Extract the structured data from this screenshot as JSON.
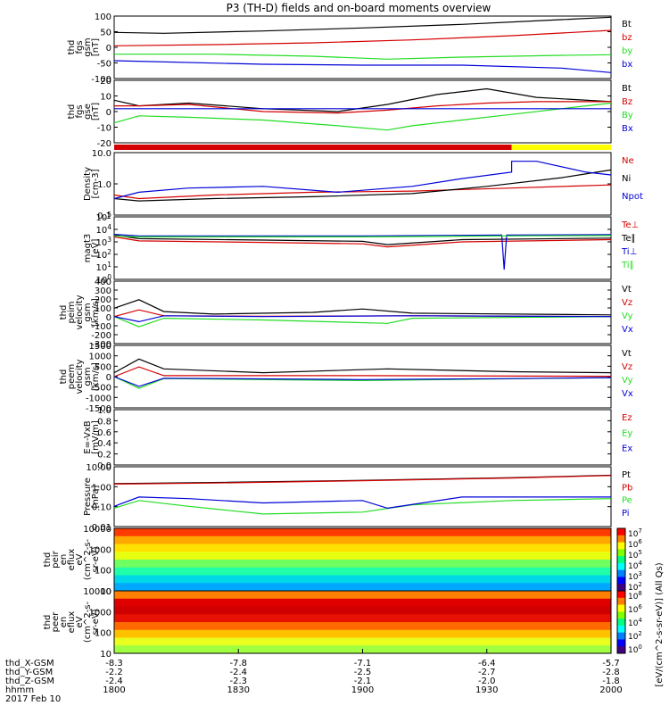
{
  "title": "P3 (TH-D) fields and on-board moments overview",
  "colors": {
    "black": "#000000",
    "red": "#d40000",
    "green": "#22dd22",
    "blue": "#0000d8",
    "yellow": "#ffff00"
  },
  "chart_data": [
    {
      "type": "line",
      "id": "fgs_gsm",
      "ylabel": [
        "thd",
        "fgs",
        "gsm",
        "[nT]"
      ],
      "yticks": [
        "100",
        "50",
        "0",
        "-50",
        "-100"
      ],
      "ylim": [
        -100,
        110
      ],
      "series": [
        {
          "name": "Bt",
          "color": "#000000",
          "x": [
            0,
            0.1,
            0.3,
            0.5,
            0.7,
            0.9,
            1.0
          ],
          "y": [
            55,
            52,
            60,
            70,
            82,
            98,
            106
          ]
        },
        {
          "name": "bz",
          "color": "#d40000",
          "x": [
            0,
            0.2,
            0.4,
            0.6,
            0.8,
            1.0
          ],
          "y": [
            10,
            14,
            20,
            30,
            44,
            62
          ]
        },
        {
          "name": "by",
          "color": "#22dd22",
          "x": [
            0,
            0.2,
            0.4,
            0.55,
            0.7,
            0.9,
            1.0
          ],
          "y": [
            -18,
            -18,
            -25,
            -35,
            -28,
            -22,
            -20
          ]
        },
        {
          "name": "bx",
          "color": "#0000d8",
          "x": [
            0,
            0.3,
            0.5,
            0.7,
            0.9,
            1.0
          ],
          "y": [
            -40,
            -52,
            -55,
            -55,
            -65,
            -80
          ]
        }
      ]
    },
    {
      "type": "line",
      "id": "fgs_gse",
      "ylabel": [
        "thd",
        "fgs",
        "gse",
        "[nT]"
      ],
      "yticks": [
        "20",
        "10",
        "0",
        "-10",
        "-20"
      ],
      "ylim": [
        -24,
        20
      ],
      "series": [
        {
          "name": "Bt",
          "color": "#000000",
          "x": [
            0,
            0.05,
            0.15,
            0.3,
            0.45,
            0.55,
            0.65,
            0.75,
            0.85,
            1.0
          ],
          "y": [
            6,
            2,
            4,
            0,
            -2,
            3,
            10,
            14,
            8,
            5
          ]
        },
        {
          "name": "Bz",
          "color": "#d40000",
          "x": [
            0,
            0.05,
            0.15,
            0.3,
            0.45,
            0.55,
            0.65,
            0.75,
            0.85,
            1.0
          ],
          "y": [
            2,
            2,
            3,
            -2,
            -3,
            -1,
            2,
            4,
            5,
            5
          ]
        },
        {
          "name": "By",
          "color": "#22dd22",
          "x": [
            0,
            0.05,
            0.15,
            0.3,
            0.45,
            0.55,
            0.6,
            0.7,
            0.8,
            0.9,
            1.0
          ],
          "y": [
            -10,
            -5,
            -6,
            -8,
            -12,
            -15,
            -12,
            -8,
            -4,
            0,
            4
          ]
        },
        {
          "name": "Bx",
          "color": "#0000d8",
          "x": [
            0,
            1.0
          ],
          "y": [
            0,
            0
          ]
        }
      ]
    },
    {
      "type": "line",
      "id": "density",
      "log": true,
      "ylabel": [
        "Density",
        "[cm-3]"
      ],
      "yticks": [
        "10.0",
        "1.0",
        "0.1"
      ],
      "ylim": [
        0.08,
        12
      ],
      "series": [
        {
          "name": "Ne",
          "color": "#d40000",
          "x": [
            0,
            0.05,
            0.2,
            0.4,
            0.6,
            0.8,
            1.0
          ],
          "y": [
            0.4,
            0.3,
            0.4,
            0.5,
            0.55,
            0.7,
            0.9
          ]
        },
        {
          "name": "Ni",
          "color": "#000000",
          "x": [
            0,
            0.05,
            0.2,
            0.4,
            0.6,
            0.75,
            0.9,
            1.0
          ],
          "y": [
            0.3,
            0.25,
            0.3,
            0.35,
            0.45,
            0.8,
            1.6,
            3.0
          ]
        },
        {
          "name": "Npot",
          "color": "#0000d8",
          "x": [
            0,
            0.05,
            0.15,
            0.3,
            0.45,
            0.6,
            0.7,
            0.8,
            0.8,
            0.85,
            0.95,
            1.0
          ],
          "y": [
            0.3,
            0.5,
            0.7,
            0.8,
            0.5,
            0.8,
            1.5,
            2.5,
            6.0,
            6.0,
            2.5,
            2.0
          ]
        }
      ]
    },
    {
      "type": "line",
      "id": "temperature",
      "log": true,
      "ylabel": [
        "magt3",
        "[eV]"
      ],
      "yticks": [
        "10^5",
        "10^4",
        "10^3",
        "10^2",
        "10^1",
        "10^0"
      ],
      "ylim": [
        1,
        100000
      ],
      "series": [
        {
          "name": "Te⊥",
          "color": "#d40000",
          "x": [
            0,
            0.05,
            0.3,
            0.5,
            0.55,
            0.7,
            1.0
          ],
          "y": [
            2500,
            1200,
            900,
            700,
            400,
            1000,
            1500
          ]
        },
        {
          "name": "Te∥",
          "color": "#000000",
          "x": [
            0,
            0.05,
            0.3,
            0.5,
            0.55,
            0.7,
            1.0
          ],
          "y": [
            3500,
            1800,
            1400,
            1100,
            600,
            1500,
            2000
          ]
        },
        {
          "name": "Ti⊥",
          "color": "#0000d8",
          "x": [
            0,
            0.05,
            0.5,
            0.78,
            0.785,
            0.79,
            1.0
          ],
          "y": [
            4000,
            3000,
            3000,
            3500,
            6,
            3500,
            3800
          ]
        },
        {
          "name": "Ti∥",
          "color": "#22dd22",
          "x": [
            0,
            0.05,
            0.5,
            0.8,
            1.0
          ],
          "y": [
            3000,
            2500,
            2500,
            3000,
            3200
          ]
        }
      ]
    },
    {
      "type": "line",
      "id": "peim_velocity",
      "ylabel": [
        "thd",
        "peim",
        "velocity",
        "gsm",
        "[km/s]"
      ],
      "yticks": [
        "400",
        "300",
        "200",
        "100",
        "0",
        "-100",
        "-200",
        "-300"
      ],
      "ylim": [
        -320,
        420
      ],
      "series": [
        {
          "name": "Vt",
          "color": "#000000",
          "x": [
            0,
            0.05,
            0.1,
            0.2,
            0.4,
            0.5,
            0.6,
            1.0
          ],
          "y": [
            100,
            200,
            60,
            30,
            50,
            90,
            40,
            20
          ]
        },
        {
          "name": "Vz",
          "color": "#d40000",
          "x": [
            0,
            0.05,
            0.1,
            0.3,
            0.6,
            1.0
          ],
          "y": [
            0,
            80,
            10,
            5,
            10,
            0
          ]
        },
        {
          "name": "Vy",
          "color": "#22dd22",
          "x": [
            0,
            0.05,
            0.1,
            0.3,
            0.55,
            0.6,
            1.0
          ],
          "y": [
            0,
            -120,
            -20,
            -40,
            -80,
            -20,
            0
          ]
        },
        {
          "name": "Vx",
          "color": "#0000d8",
          "x": [
            0,
            0.05,
            0.1,
            0.3,
            0.6,
            1.0
          ],
          "y": [
            0,
            -60,
            10,
            0,
            10,
            0
          ]
        }
      ]
    },
    {
      "type": "line",
      "id": "peem_velocity",
      "ylabel": [
        "thd",
        "peem",
        "velocity",
        "gsm",
        "[km/s]"
      ],
      "yticks": [
        "1500",
        "1000",
        "500",
        "0",
        "-500",
        "-1000",
        "-1500"
      ],
      "ylim": [
        -1600,
        1600
      ],
      "series": [
        {
          "name": "Vt",
          "color": "#000000",
          "x": [
            0,
            0.05,
            0.1,
            0.3,
            0.55,
            0.8,
            1.0
          ],
          "y": [
            200,
            900,
            400,
            200,
            400,
            250,
            200
          ]
        },
        {
          "name": "Vz",
          "color": "#d40000",
          "x": [
            0,
            0.05,
            0.1,
            0.5,
            1.0
          ],
          "y": [
            0,
            500,
            50,
            50,
            20
          ]
        },
        {
          "name": "Vy",
          "color": "#22dd22",
          "x": [
            0,
            0.05,
            0.1,
            0.5,
            1.0
          ],
          "y": [
            0,
            -600,
            -100,
            -200,
            -50
          ]
        },
        {
          "name": "Vx",
          "color": "#0000d8",
          "x": [
            0,
            0.05,
            0.1,
            0.5,
            0.8,
            1.0
          ],
          "y": [
            0,
            -500,
            -80,
            -150,
            -100,
            -50
          ]
        }
      ]
    },
    {
      "type": "line",
      "id": "efield",
      "ylabel": [
        "E=-VxB",
        "[mV/m]"
      ],
      "yticks": [
        "1.0",
        "0.8",
        "0.6",
        "0.4",
        "0.2",
        "0.0"
      ],
      "ylim": [
        0,
        1.05
      ],
      "series": [
        {
          "name": "Ez",
          "color": "#d40000",
          "x": [],
          "y": []
        },
        {
          "name": "Ey",
          "color": "#22dd22",
          "x": [],
          "y": []
        },
        {
          "name": "Ex",
          "color": "#0000d8",
          "x": [],
          "y": []
        }
      ]
    },
    {
      "type": "line",
      "id": "pressure",
      "log": true,
      "ylabel": [
        "Pressure",
        "[nPa]"
      ],
      "yticks": [
        "10.00",
        "1.00",
        "0.10",
        "0.01"
      ],
      "ylim": [
        0.009,
        11
      ],
      "series": [
        {
          "name": "Pt",
          "color": "#000000",
          "x": [
            0,
            0.2,
            0.5,
            0.8,
            1.0
          ],
          "y": [
            1.5,
            1.7,
            2.2,
            3.0,
            4.0
          ]
        },
        {
          "name": "Pb",
          "color": "#d40000",
          "x": [
            0,
            0.2,
            0.5,
            0.8,
            1.0
          ],
          "y": [
            1.4,
            1.6,
            2.1,
            2.9,
            3.9
          ]
        },
        {
          "name": "Pe",
          "color": "#22dd22",
          "x": [
            0,
            0.05,
            0.15,
            0.3,
            0.5,
            0.6,
            0.8,
            1.0
          ],
          "y": [
            0.08,
            0.2,
            0.1,
            0.04,
            0.05,
            0.12,
            0.2,
            0.25
          ]
        },
        {
          "name": "Pi",
          "color": "#0000d8",
          "x": [
            0,
            0.05,
            0.15,
            0.3,
            0.5,
            0.55,
            0.7,
            1.0
          ],
          "y": [
            0.1,
            0.3,
            0.25,
            0.15,
            0.2,
            0.08,
            0.3,
            0.3
          ]
        }
      ]
    },
    {
      "type": "heatmap",
      "id": "peir_spectrogram",
      "ylabel": [
        "thd",
        "peir",
        "en",
        "eflux",
        "eV",
        "(cm^2-s-",
        "sr-eV)"
      ],
      "yticks": [
        "10000",
        "1000",
        "100",
        "10"
      ],
      "colorbar_ticks": [
        "10^7",
        "10^6",
        "10^5",
        "10^4",
        "10^3",
        "10^2"
      ],
      "colorbar_label": "[eV/(cm^2-s-sr-eV)] (All Qs)",
      "bands": [
        "#ff3a00",
        "#ffa800",
        "#ffe000",
        "#e6ff10",
        "#70ff60",
        "#20ffa8",
        "#00d8e8",
        "#00a8ff"
      ]
    },
    {
      "type": "heatmap",
      "id": "peer_spectrogram",
      "ylabel": [
        "thd",
        "peer",
        "en",
        "eflux",
        "eV",
        "(cm^2-s-",
        "sr-eV)"
      ],
      "yticks": [
        "10000",
        "1000",
        "100",
        "10"
      ],
      "colorbar_ticks": [
        "10^8",
        "10^6",
        "10^4",
        "10^2",
        "10^0"
      ],
      "bands": [
        "#ff8000",
        "#e00000",
        "#d00000",
        "#e81000",
        "#ff6a00",
        "#ffc000",
        "#e8ff20",
        "#a0ff40"
      ]
    }
  ],
  "x_axis": {
    "tick_labels": [
      "1800",
      "1830",
      "1900",
      "1930",
      "2000"
    ],
    "rows": [
      {
        "name": "thd_X-GSM",
        "values": [
          "-8.3",
          "-7.8",
          "-7.1",
          "-6.4",
          "-5.7"
        ]
      },
      {
        "name": "thd_Y-GSM",
        "values": [
          "-2.2",
          "-2.4",
          "-2.5",
          "-2.7",
          "-2.8"
        ]
      },
      {
        "name": "thd_Z-GSM",
        "values": [
          "-2.4",
          "-2.3",
          "-2.1",
          "-2.0",
          "-1.8"
        ]
      },
      {
        "name": "hhmm",
        "values": [
          "1800",
          "1830",
          "1900",
          "1930",
          "2000"
        ]
      }
    ],
    "date": "2017 Feb 10"
  }
}
